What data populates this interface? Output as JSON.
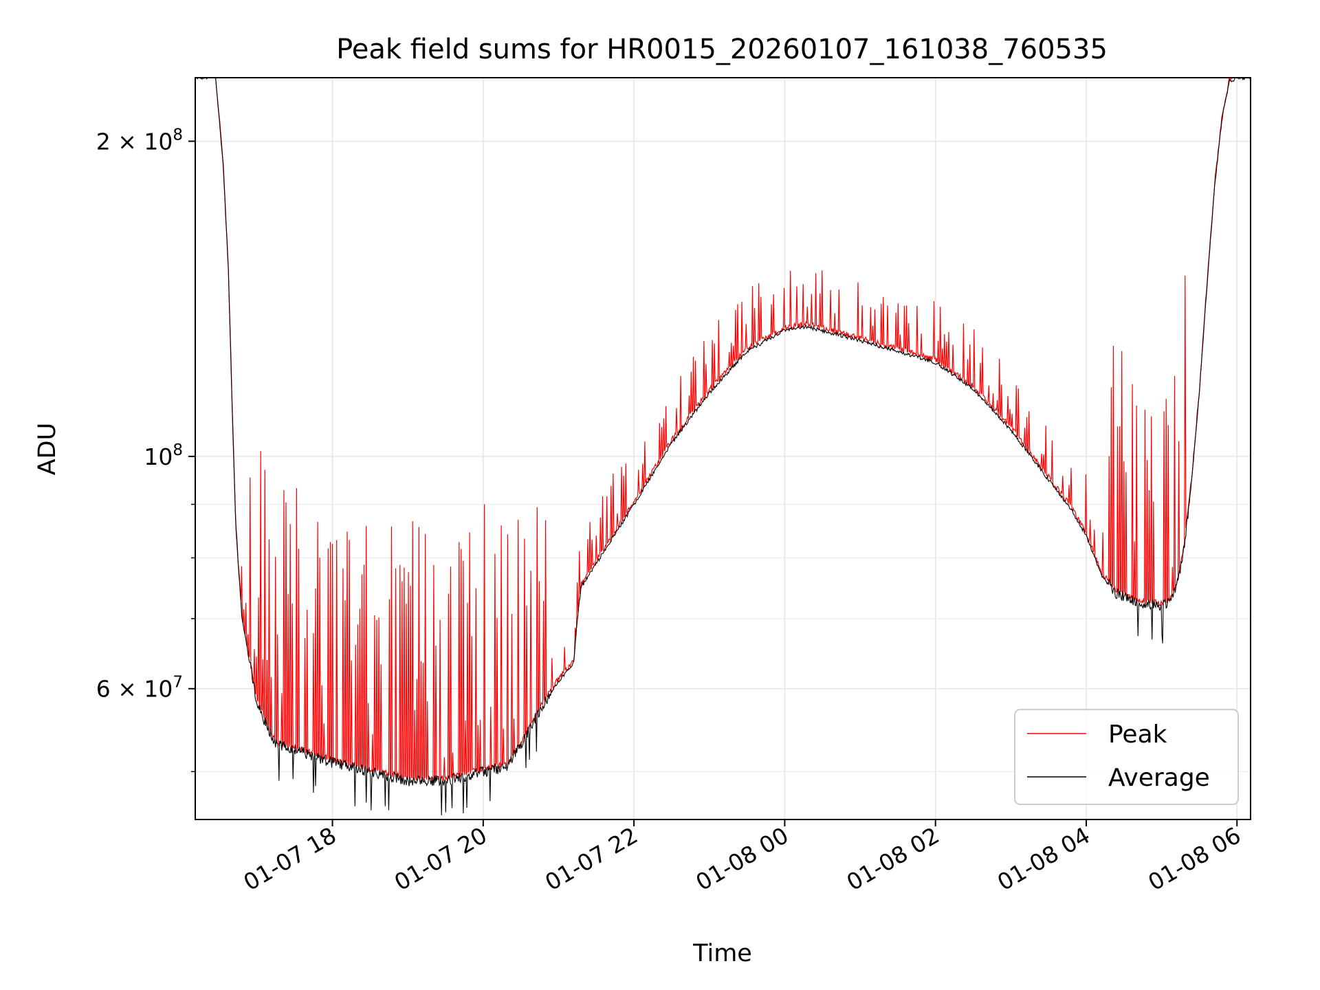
{
  "chart_data": {
    "type": "line",
    "title": "Peak field sums for HR0015_20260107_161038_760535",
    "xlabel": "Time",
    "ylabel": "ADU",
    "yscale": "log",
    "ylim": [
      45000000,
      230000000
    ],
    "xlim_hours": [
      16.18,
      30.18
    ],
    "grid": true,
    "legend_position": "lower-right",
    "x_ticks": [
      {
        "hour": 18,
        "label": "01-07 18"
      },
      {
        "hour": 20,
        "label": "01-07 20"
      },
      {
        "hour": 22,
        "label": "01-07 22"
      },
      {
        "hour": 24,
        "label": "01-08 00"
      },
      {
        "hour": 26,
        "label": "01-08 02"
      },
      {
        "hour": 28,
        "label": "01-08 04"
      },
      {
        "hour": 30,
        "label": "01-08 06"
      }
    ],
    "y_major_ticks": [
      {
        "value": 100000000,
        "base": "10",
        "exp": "8",
        "coef": ""
      },
      {
        "value": 200000000,
        "base": "10",
        "exp": "8",
        "coef": "2 × "
      },
      {
        "value": 60000000,
        "base": "10",
        "exp": "7",
        "coef": "6 × "
      }
    ],
    "y_minor_ticks": [
      50000000,
      70000000,
      80000000,
      90000000
    ],
    "series": [
      {
        "name": "Peak",
        "color": "#ff0000",
        "style": "thin line with frequent upward spikes above average"
      },
      {
        "name": "Average",
        "color": "#000000",
        "style": "thin line"
      }
    ],
    "average_curve": {
      "hours": [
        16.18,
        16.45,
        16.55,
        16.62,
        16.68,
        16.72,
        16.8,
        17.0,
        17.25,
        17.5,
        18.0,
        18.5,
        19.0,
        19.5,
        20.0,
        20.3,
        20.5,
        20.8,
        21.0,
        21.2,
        21.25,
        21.3,
        21.5,
        22.0,
        22.5,
        23.0,
        23.5,
        24.0,
        24.3,
        25.0,
        25.5,
        26.0,
        26.5,
        27.0,
        27.5,
        27.8,
        28.0,
        28.2,
        28.4,
        28.7,
        29.0,
        29.1,
        29.2,
        29.3,
        29.4,
        29.5,
        29.6,
        29.7,
        29.8,
        29.9,
        30.0,
        30.05
      ],
      "values": [
        230000000,
        230000000,
        190000000,
        150000000,
        105000000,
        85000000,
        70000000,
        58000000,
        53000000,
        52500000,
        51000000,
        50000000,
        49000000,
        49000000,
        50000000,
        50500000,
        53000000,
        58000000,
        61000000,
        63500000,
        70000000,
        75000000,
        79000000,
        90000000,
        103000000,
        115000000,
        126000000,
        132000000,
        133000000,
        129000000,
        126000000,
        123000000,
        116000000,
        106000000,
        95000000,
        89000000,
        84000000,
        77000000,
        74000000,
        72500000,
        72000000,
        72500000,
        75000000,
        82000000,
        95000000,
        115000000,
        145000000,
        180000000,
        210000000,
        228000000,
        230000000,
        230000000
      ]
    }
  },
  "legend": {
    "peak_label": "Peak",
    "average_label": "Average"
  }
}
